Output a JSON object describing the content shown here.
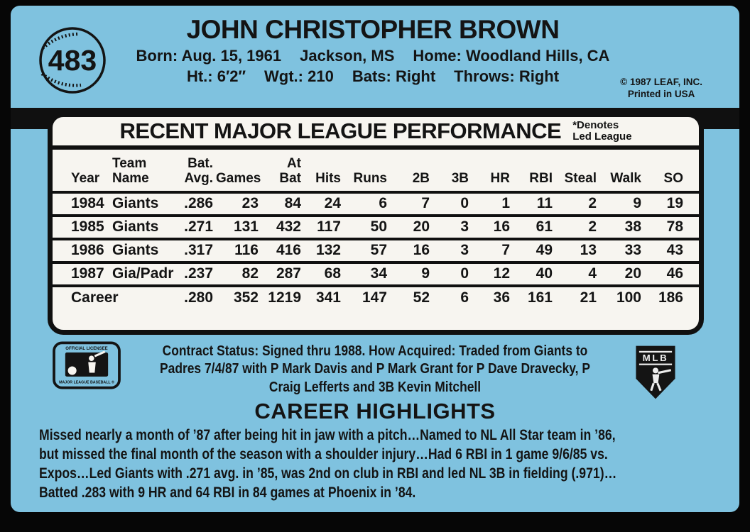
{
  "card": {
    "number": "483",
    "background_color": "#7fc2df",
    "ink_color": "#101010",
    "panel_color": "#f7f5f0"
  },
  "header": {
    "player_name": "JOHN CHRISTOPHER BROWN",
    "bio_line1": [
      "Born: Aug. 15, 1961",
      "Jackson, MS",
      "Home: Woodland Hills, CA"
    ],
    "bio_line2": [
      "Ht.: 6′2″",
      "Wgt.: 210",
      "Bats: Right",
      "Throws: Right"
    ],
    "copyright_line1": "© 1987 LEAF, INC.",
    "copyright_line2": "Printed in USA"
  },
  "stats": {
    "title": "RECENT MAJOR LEAGUE PERFORMANCE",
    "denotes_note": "*Denotes\nLed League",
    "columns": [
      "Year",
      "Team\nName",
      "Bat.\nAvg.",
      "Games",
      "At\nBat",
      "Hits",
      "Runs",
      "2B",
      "3B",
      "HR",
      "RBI",
      "Steal",
      "Walk",
      "SO"
    ],
    "rows": [
      [
        "1984",
        "Giants",
        ".286",
        "23",
        "84",
        "24",
        "6",
        "7",
        "0",
        "1",
        "11",
        "2",
        "9",
        "19"
      ],
      [
        "1985",
        "Giants",
        ".271",
        "131",
        "432",
        "117",
        "50",
        "20",
        "3",
        "16",
        "61",
        "2",
        "38",
        "78"
      ],
      [
        "1986",
        "Giants",
        ".317",
        "116",
        "416",
        "132",
        "57",
        "16",
        "3",
        "7",
        "49",
        "13",
        "33",
        "43"
      ],
      [
        "1987",
        "Gia/Padr",
        ".237",
        "82",
        "287",
        "68",
        "34",
        "9",
        "0",
        "12",
        "40",
        "4",
        "20",
        "46"
      ],
      [
        "Career",
        "",
        ".280",
        "352",
        "1219",
        "341",
        "147",
        "52",
        "6",
        "36",
        "161",
        "21",
        "100",
        "186"
      ]
    ]
  },
  "contract": {
    "lines": [
      "Contract Status: Signed thru 1988. How Acquired: Traded from Giants to",
      "Padres 7/4/87 with P Mark Davis and P Mark Grant for P Dave Dravecky, P",
      "Craig Lefferts and 3B Kevin Mitchell"
    ]
  },
  "logos": {
    "left_top_text": "OFFICIAL LICENSEE",
    "left_bottom_text": "MAJOR LEAGUE BASEBALL ®",
    "right_shield_text": "MLB"
  },
  "highlights": {
    "title": "CAREER HIGHLIGHTS",
    "lines": [
      "Missed nearly a month of ’87 after being hit in jaw with a pitch…Named to NL All Star team in ’86,",
      "but missed the final month of the season with a shoulder injury…Had 6 RBI in 1 game 9/6/85 vs.",
      "Expos…Led Giants with .271 avg. in ’85, was 2nd on club in RBI and led NL 3B in fielding (.971)…",
      "Batted .283 with 9 HR and 64 RBI in 84 games at Phoenix in ’84."
    ]
  }
}
